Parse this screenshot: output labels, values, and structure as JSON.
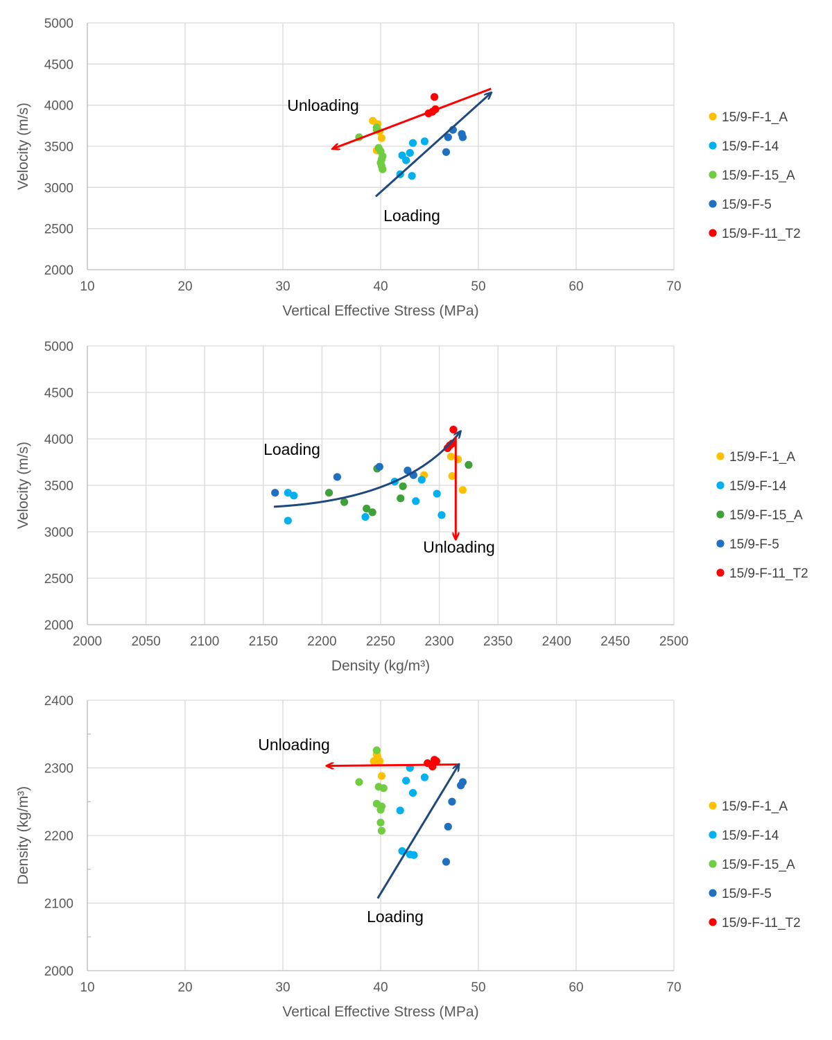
{
  "colors": {
    "F1A": "#FFC000",
    "F14": "#00B0F0",
    "F15A_light": "#70CC40",
    "F15A_dark": "#3EA13A",
    "F5": "#1F70C1",
    "F11T2": "#FF0000",
    "loading_arrow": "#1F497D",
    "unloading_arrow": "#FF0000"
  },
  "chart_data": [
    {
      "type": "scatter",
      "title": "",
      "xlabel": "Vertical Effective Stress (MPa)",
      "ylabel": "Velocity (m/s)",
      "xlim": [
        10,
        70
      ],
      "ylim": [
        2000,
        5000
      ],
      "xticks": [
        "10",
        "20",
        "30",
        "40",
        "50",
        "60",
        "70"
      ],
      "yticks": [
        "2000",
        "2500",
        "3000",
        "3500",
        "4000",
        "4500",
        "5000"
      ],
      "grid": true,
      "legend_position": "right",
      "series": [
        {
          "name": "15/9-F-1_A",
          "color": "#FFC000",
          "points": [
            [
              39.2,
              3810
            ],
            [
              39.7,
              3770
            ],
            [
              39.9,
              3680
            ],
            [
              40.1,
              3600
            ],
            [
              39.6,
              3450
            ]
          ]
        },
        {
          "name": "15/9-F-14",
          "color": "#00B0F0",
          "points": [
            [
              42.2,
              3390
            ],
            [
              42.6,
              3330
            ],
            [
              43.0,
              3420
            ],
            [
              43.3,
              3540
            ],
            [
              44.5,
              3560
            ],
            [
              42.0,
              3160
            ],
            [
              43.2,
              3140
            ]
          ]
        },
        {
          "name": "15/9-F-15_A",
          "color": "#70CC40",
          "points": [
            [
              37.8,
              3610
            ],
            [
              39.6,
              3730
            ],
            [
              39.6,
              3700
            ],
            [
              39.8,
              3480
            ],
            [
              40.0,
              3440
            ],
            [
              40.2,
              3380
            ],
            [
              40.1,
              3340
            ],
            [
              40.0,
              3300
            ],
            [
              40.1,
              3260
            ],
            [
              40.2,
              3220
            ]
          ]
        },
        {
          "name": "15/9-F-5",
          "color": "#1F70C1",
          "points": [
            [
              47.4,
              3700
            ],
            [
              46.9,
              3610
            ],
            [
              48.3,
              3650
            ],
            [
              48.4,
              3610
            ],
            [
              46.7,
              3430
            ]
          ]
        },
        {
          "name": "15/9-F-11_T2",
          "color": "#FF0000",
          "points": [
            [
              45.5,
              4100
            ],
            [
              44.9,
              3900
            ],
            [
              45.3,
              3920
            ],
            [
              45.6,
              3950
            ]
          ]
        }
      ],
      "annotations": [
        {
          "label": "Unloading",
          "from": [
            51.3,
            4200
          ],
          "to": [
            35.1,
            3470
          ]
        },
        {
          "label": "Loading",
          "from": [
            39.5,
            2890
          ],
          "to": [
            51.3,
            4150
          ]
        }
      ]
    },
    {
      "type": "scatter",
      "title": "",
      "xlabel": "Density (kg/m³)",
      "ylabel": "Velocity (m/s)",
      "xlim": [
        2000,
        2500
      ],
      "ylim": [
        2000,
        5000
      ],
      "xticks": [
        "2000",
        "2050",
        "2100",
        "2150",
        "2200",
        "2250",
        "2300",
        "2350",
        "2400",
        "2450",
        "2500"
      ],
      "yticks": [
        "2000",
        "2500",
        "3000",
        "3500",
        "4000",
        "4500",
        "5000"
      ],
      "grid": true,
      "legend_position": "right",
      "series": [
        {
          "name": "15/9-F-1_A",
          "color": "#FFC000",
          "points": [
            [
              2287,
              3610
            ],
            [
              2310,
              3810
            ],
            [
              2316,
              3780
            ],
            [
              2311,
              3600
            ],
            [
              2320,
              3450
            ]
          ]
        },
        {
          "name": "15/9-F-14",
          "color": "#00B0F0",
          "points": [
            [
              2171,
              3420
            ],
            [
              2176,
              3390
            ],
            [
              2262,
              3540
            ],
            [
              2285,
              3560
            ],
            [
              2280,
              3330
            ],
            [
              2298,
              3410
            ],
            [
              2302,
              3180
            ],
            [
              2237,
              3160
            ],
            [
              2171,
              3120
            ]
          ]
        },
        {
          "name": "15/9-F-15_A",
          "color": "#3EA13A",
          "points": [
            [
              2206,
              3420
            ],
            [
              2219,
              3320
            ],
            [
              2247,
              3680
            ],
            [
              2269,
              3490
            ],
            [
              2267,
              3360
            ],
            [
              2238,
              3250
            ],
            [
              2243,
              3210
            ],
            [
              2325,
              3720
            ]
          ]
        },
        {
          "name": "15/9-F-5",
          "color": "#1F70C1",
          "points": [
            [
              2160,
              3420
            ],
            [
              2213,
              3590
            ],
            [
              2249,
              3700
            ],
            [
              2273,
              3660
            ],
            [
              2278,
              3610
            ]
          ]
        },
        {
          "name": "15/9-F-11_T2",
          "color": "#FF0000",
          "points": [
            [
              2312,
              4100
            ],
            [
              2307,
              3900
            ],
            [
              2309,
              3930
            ],
            [
              2311,
              3950
            ]
          ]
        }
      ],
      "annotations": [
        {
          "label": "Loading",
          "from": [
            2159,
            3270
          ],
          "to": [
            2318,
            4080
          ]
        },
        {
          "label": "Unloading",
          "from": [
            2314,
            4020
          ],
          "to": [
            2314,
            2920
          ]
        }
      ]
    },
    {
      "type": "scatter",
      "title": "",
      "xlabel": "Vertical Effective Stress (MPa)",
      "ylabel": "Density (kg/m³)",
      "xlim": [
        10,
        70
      ],
      "ylim": [
        2000,
        2400
      ],
      "xticks": [
        "10",
        "20",
        "30",
        "40",
        "50",
        "60",
        "70"
      ],
      "yticks": [
        "2000",
        "2100",
        "2200",
        "2300",
        "2400"
      ],
      "grid": true,
      "legend_position": "right",
      "series": [
        {
          "name": "15/9-F-1_A",
          "color": "#FFC000",
          "points": [
            [
              39.3,
              2310
            ],
            [
              39.7,
              2315
            ],
            [
              39.9,
              2310
            ],
            [
              40.1,
              2288
            ],
            [
              39.6,
              2320
            ]
          ]
        },
        {
          "name": "15/9-F-14",
          "color": "#00B0F0",
          "points": [
            [
              43.0,
              2300
            ],
            [
              42.6,
              2281
            ],
            [
              43.3,
              2263
            ],
            [
              44.5,
              2286
            ],
            [
              42.0,
              2237
            ],
            [
              42.2,
              2177
            ],
            [
              43.0,
              2172
            ],
            [
              43.4,
              2171
            ]
          ]
        },
        {
          "name": "15/9-F-15_A",
          "color": "#70CC40",
          "points": [
            [
              39.6,
              2326
            ],
            [
              37.8,
              2279
            ],
            [
              39.8,
              2272
            ],
            [
              40.3,
              2270
            ],
            [
              39.6,
              2247
            ],
            [
              40.1,
              2243
            ],
            [
              40.0,
              2238
            ],
            [
              40.0,
              2219
            ],
            [
              40.1,
              2207
            ]
          ]
        },
        {
          "name": "15/9-F-5",
          "color": "#1F70C1",
          "points": [
            [
              48.4,
              2279
            ],
            [
              48.2,
              2274
            ],
            [
              47.3,
              2250
            ],
            [
              46.9,
              2213
            ],
            [
              46.7,
              2161
            ]
          ]
        },
        {
          "name": "15/9-F-11_T2",
          "color": "#FF0000",
          "points": [
            [
              44.8,
              2307
            ],
            [
              45.2,
              2305
            ],
            [
              45.5,
              2312
            ],
            [
              45.7,
              2310
            ],
            [
              45.3,
              2302
            ]
          ]
        }
      ],
      "annotations": [
        {
          "label": "Unloading",
          "from": [
            48.0,
            2305
          ],
          "to": [
            34.5,
            2303
          ]
        },
        {
          "label": "Loading",
          "from": [
            39.7,
            2107
          ],
          "to": [
            48.0,
            2305
          ]
        }
      ]
    }
  ]
}
